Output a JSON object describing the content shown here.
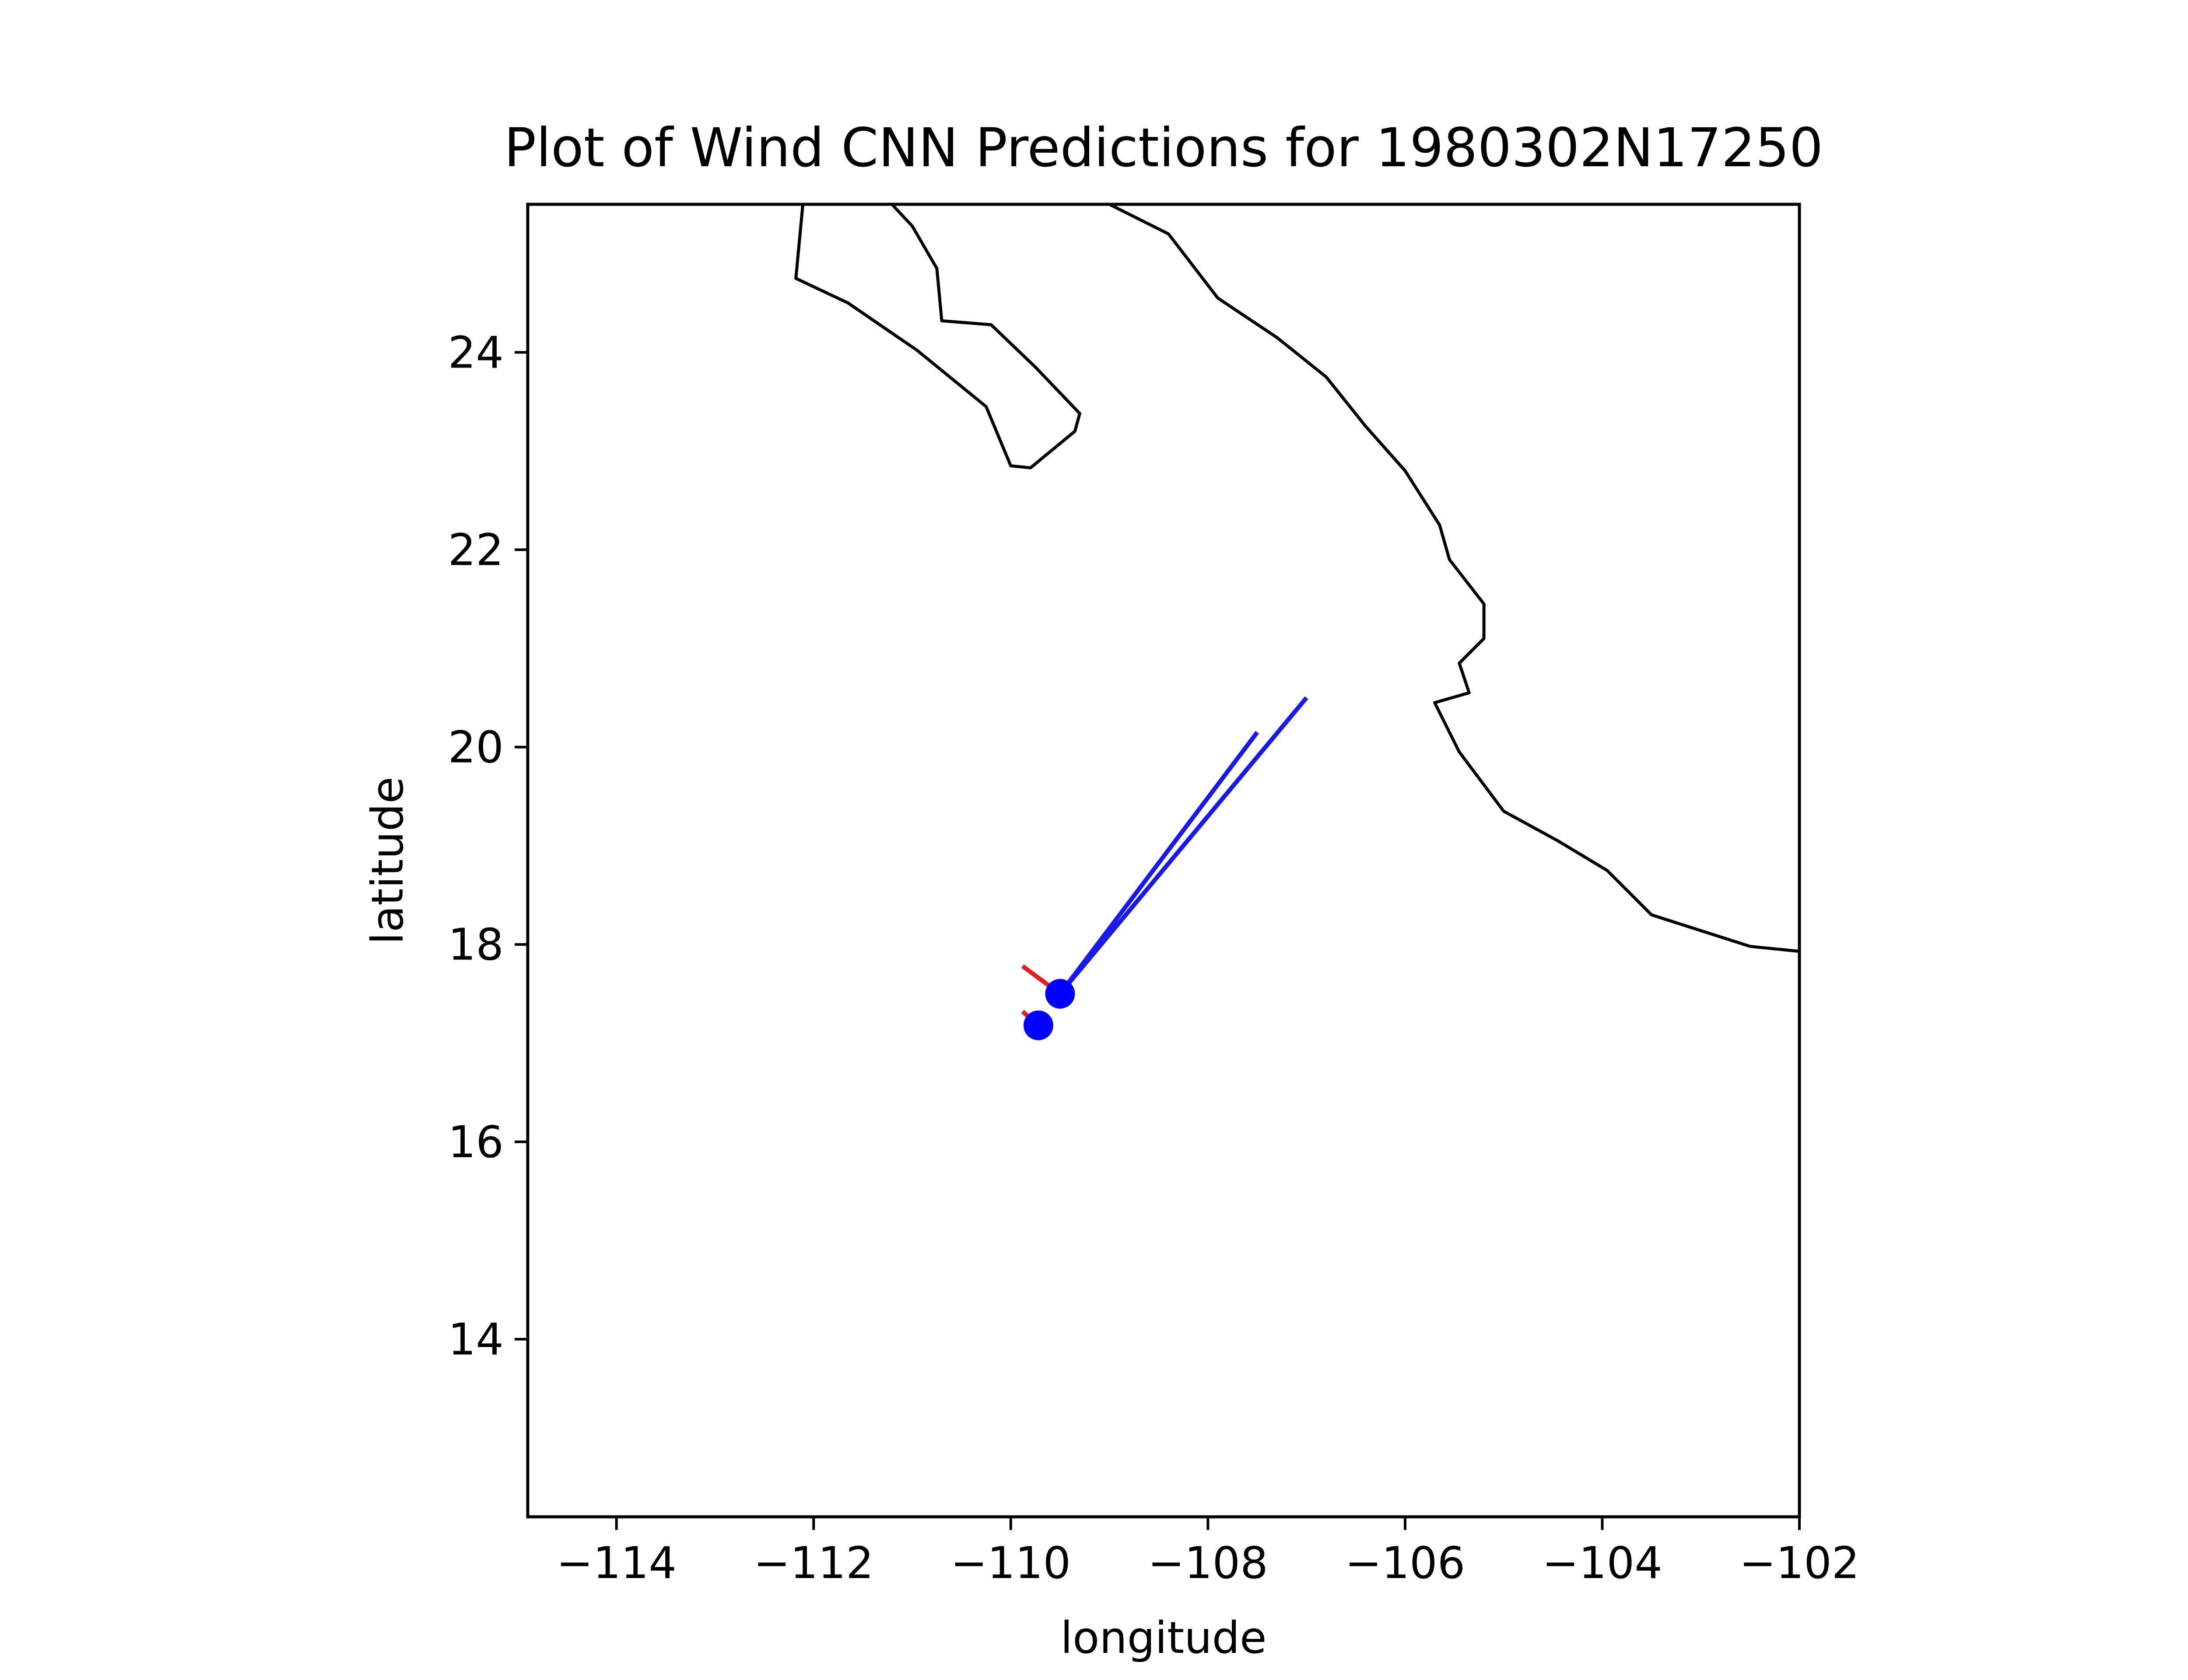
{
  "chart_data": {
    "type": "scatter",
    "title": "Plot of Wind CNN Predictions for 1980302N17250",
    "xlabel": "longitude",
    "ylabel": "latitude",
    "xlim": [
      -114.9,
      -102.0
    ],
    "ylim": [
      12.2,
      25.5
    ],
    "xticks": [
      -114,
      -112,
      -110,
      -108,
      -106,
      -104,
      -102
    ],
    "yticks": [
      14,
      16,
      18,
      20,
      22,
      24
    ],
    "xtick_labels": [
      "−114",
      "−112",
      "−110",
      "−108",
      "−106",
      "−104",
      "−102"
    ],
    "ytick_labels": [
      "14",
      "16",
      "18",
      "20",
      "22",
      "24"
    ],
    "grid": false,
    "legend": "none",
    "colors": {
      "track_point": "#0000ff",
      "blue_vector": "#1a1ae6",
      "red_vector": "#e02020",
      "coastline": "#000000"
    },
    "points": [
      {
        "lon": -109.5,
        "lat": 17.5
      },
      {
        "lon": -109.72,
        "lat": 17.18
      }
    ],
    "blue_vectors": [
      {
        "from": [
          -109.5,
          17.5
        ],
        "to": [
          -107.5,
          20.15
        ]
      },
      {
        "from": [
          -109.5,
          17.5
        ],
        "to": [
          -107.0,
          20.5
        ]
      }
    ],
    "red_vectors": [
      {
        "from": [
          -109.5,
          17.5
        ],
        "to": [
          -109.88,
          17.78
        ]
      },
      {
        "from": [
          -109.72,
          17.18
        ],
        "to": [
          -109.88,
          17.32
        ]
      }
    ],
    "coastlines": [
      [
        [
          -109.2,
          25.6
        ],
        [
          -108.4,
          25.2
        ],
        [
          -107.9,
          24.55
        ],
        [
          -107.3,
          24.15
        ],
        [
          -106.8,
          23.75
        ],
        [
          -106.4,
          23.25
        ],
        [
          -106.0,
          22.8
        ],
        [
          -105.65,
          22.25
        ],
        [
          -105.55,
          21.9
        ],
        [
          -105.2,
          21.45
        ],
        [
          -105.2,
          21.1
        ],
        [
          -105.45,
          20.85
        ],
        [
          -105.35,
          20.55
        ],
        [
          -105.7,
          20.45
        ],
        [
          -105.45,
          19.95
        ],
        [
          -105.0,
          19.35
        ],
        [
          -104.45,
          19.05
        ],
        [
          -103.95,
          18.75
        ],
        [
          -103.5,
          18.3
        ],
        [
          -102.5,
          17.98
        ],
        [
          -102.0,
          17.93
        ]
      ],
      [
        [
          -112.1,
          25.6
        ],
        [
          -112.18,
          24.75
        ],
        [
          -111.65,
          24.5
        ],
        [
          -110.95,
          24.02
        ],
        [
          -110.25,
          23.45
        ],
        [
          -110.0,
          22.85
        ],
        [
          -109.8,
          22.83
        ],
        [
          -109.35,
          23.2
        ],
        [
          -109.3,
          23.38
        ],
        [
          -109.75,
          23.85
        ],
        [
          -110.2,
          24.28
        ],
        [
          -110.7,
          24.32
        ],
        [
          -110.75,
          24.85
        ],
        [
          -111.0,
          25.28
        ],
        [
          -111.3,
          25.6
        ]
      ]
    ]
  }
}
